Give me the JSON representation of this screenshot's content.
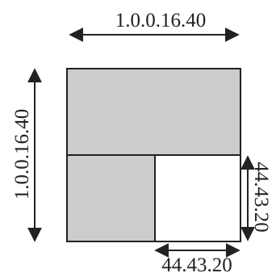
{
  "diagram": {
    "top_dimension_label": "1.0.0.16.40",
    "left_dimension_label": "1.0.0.16.40",
    "right_inner_dimension_label": "44.43.20",
    "bottom_inner_dimension_label": "44.43.20",
    "colors": {
      "fill": "#cccccc",
      "cutout": "#ffffff",
      "stroke": "#222222"
    }
  }
}
